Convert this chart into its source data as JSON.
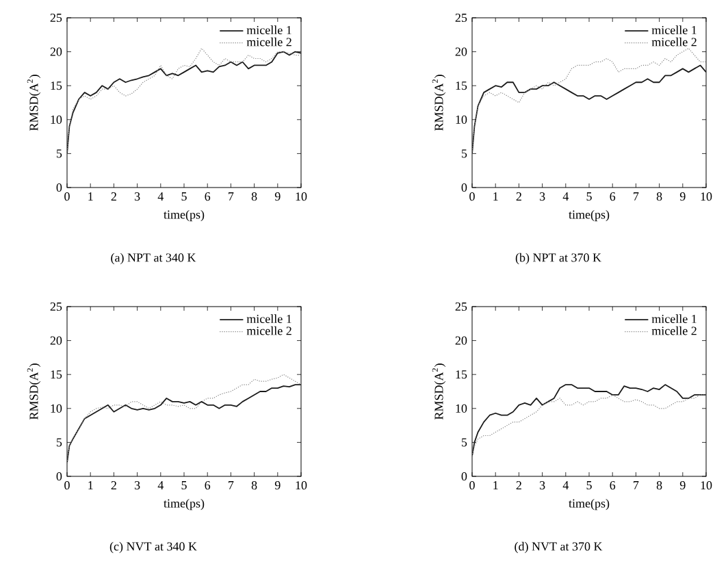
{
  "chart_data": [
    {
      "type": "line",
      "xlabel": "time(ps)",
      "ylabel": "RMSD(A$^{2}$)",
      "annotations": [
        "(a) NPT at 340 K"
      ],
      "xlim": [
        0,
        10
      ],
      "ylim": [
        0,
        25
      ],
      "xticks": [
        0,
        1,
        2,
        3,
        4,
        5,
        6,
        7,
        8,
        9,
        10
      ],
      "yticks": [
        0,
        5,
        10,
        15,
        20,
        25
      ],
      "legend": "top right",
      "x": [
        0,
        0.1,
        0.25,
        0.5,
        0.75,
        1,
        1.25,
        1.5,
        1.75,
        2,
        2.25,
        2.5,
        2.75,
        3,
        3.25,
        3.5,
        3.75,
        4,
        4.25,
        4.5,
        4.75,
        5,
        5.25,
        5.5,
        5.75,
        6,
        6.25,
        6.5,
        6.75,
        7,
        7.25,
        7.5,
        7.75,
        8,
        8.25,
        8.5,
        8.75,
        9,
        9.25,
        9.5,
        9.75,
        10
      ],
      "series": [
        {
          "name": "micelle 1",
          "color": "#1a1a1a",
          "line_style": "solid",
          "values": [
            5,
            9,
            11,
            13,
            14,
            13.5,
            14,
            15,
            14.5,
            15.5,
            16,
            15.5,
            15.8,
            16,
            16.3,
            16.5,
            17,
            17.5,
            16.5,
            16.8,
            16.5,
            17,
            17.5,
            18,
            17,
            17.2,
            17,
            17.8,
            18,
            18.5,
            18,
            18.5,
            17.5,
            18,
            18,
            18,
            18.5,
            19.8,
            20,
            19.5,
            20,
            19.8
          ]
        },
        {
          "name": "micelle 2",
          "color": "#808080",
          "line_style": "dotted",
          "values": [
            5,
            9,
            11.5,
            13,
            13.5,
            13,
            13.5,
            14.5,
            14.5,
            15,
            14,
            13.5,
            13.8,
            14.5,
            15.5,
            16,
            16.5,
            18,
            16.5,
            16,
            17.5,
            18,
            17.8,
            19,
            20.5,
            19.5,
            18.5,
            18,
            19,
            18.5,
            18.5,
            18.5,
            19.5,
            19,
            19,
            18.5,
            19,
            20,
            20,
            19.8,
            19.5,
            19.5
          ]
        }
      ]
    },
    {
      "type": "line",
      "xlabel": "time(ps)",
      "ylabel": "RMSD(A$^{2}$)",
      "annotations": [
        "(b) NPT at 370 K"
      ],
      "xlim": [
        0,
        10
      ],
      "ylim": [
        0,
        25
      ],
      "xticks": [
        0,
        1,
        2,
        3,
        4,
        5,
        6,
        7,
        8,
        9,
        10
      ],
      "yticks": [
        0,
        5,
        10,
        15,
        20,
        25
      ],
      "legend": "top right",
      "x": [
        0,
        0.1,
        0.25,
        0.5,
        0.75,
        1,
        1.25,
        1.5,
        1.75,
        2,
        2.25,
        2.5,
        2.75,
        3,
        3.25,
        3.5,
        3.75,
        4,
        4.25,
        4.5,
        4.75,
        5,
        5.25,
        5.5,
        5.75,
        6,
        6.25,
        6.5,
        6.75,
        7,
        7.25,
        7.5,
        7.75,
        8,
        8.25,
        8.5,
        8.75,
        9,
        9.25,
        9.5,
        9.75,
        10
      ],
      "series": [
        {
          "name": "micelle 1",
          "color": "#1a1a1a",
          "line_style": "solid",
          "values": [
            5,
            9,
            12,
            14,
            14.5,
            15,
            14.8,
            15.5,
            15.5,
            14,
            14,
            14.5,
            14.5,
            15,
            15,
            15.5,
            15,
            14.5,
            14,
            13.5,
            13.5,
            13,
            13.5,
            13.5,
            13,
            13.5,
            14,
            14.5,
            15,
            15.5,
            15.5,
            16,
            15.5,
            15.5,
            16.5,
            16.5,
            17,
            17.5,
            17,
            17.5,
            18,
            17
          ]
        },
        {
          "name": "micelle 2",
          "color": "#808080",
          "line_style": "dotted",
          "values": [
            5,
            9,
            12,
            13.5,
            14,
            13.5,
            14,
            13.5,
            13,
            12.5,
            14,
            14.5,
            15,
            14.5,
            15.5,
            15,
            15.5,
            16,
            17.5,
            18,
            18,
            18,
            18.5,
            18.5,
            19,
            18.5,
            17,
            17.5,
            17.5,
            17.5,
            18,
            18,
            18.5,
            18,
            19,
            18.5,
            19.5,
            20,
            20.5,
            19.5,
            18.5,
            18.5
          ]
        }
      ]
    },
    {
      "type": "line",
      "xlabel": "time(ps)",
      "ylabel": "RMSD(A$^{2}$)",
      "annotations": [
        "(c) NVT at 340 K"
      ],
      "xlim": [
        0,
        10
      ],
      "ylim": [
        0,
        25
      ],
      "xticks": [
        0,
        1,
        2,
        3,
        4,
        5,
        6,
        7,
        8,
        9,
        10
      ],
      "yticks": [
        0,
        5,
        10,
        15,
        20,
        25
      ],
      "legend": "top right",
      "x": [
        0,
        0.1,
        0.25,
        0.5,
        0.75,
        1,
        1.25,
        1.5,
        1.75,
        2,
        2.25,
        2.5,
        2.75,
        3,
        3.25,
        3.5,
        3.75,
        4,
        4.25,
        4.5,
        4.75,
        5,
        5.25,
        5.5,
        5.75,
        6,
        6.25,
        6.5,
        6.75,
        7,
        7.25,
        7.5,
        7.75,
        8,
        8.25,
        8.5,
        8.75,
        9,
        9.25,
        9.5,
        9.75,
        10
      ],
      "series": [
        {
          "name": "micelle 1",
          "color": "#1a1a1a",
          "line_style": "solid",
          "values": [
            2,
            4.5,
            5.5,
            7,
            8.5,
            9,
            9.5,
            10,
            10.5,
            9.5,
            10,
            10.5,
            10,
            9.8,
            10,
            9.8,
            10,
            10.5,
            11.5,
            11,
            11,
            10.8,
            11,
            10.5,
            11,
            10.5,
            10.5,
            10,
            10.5,
            10.5,
            10.3,
            11,
            11.5,
            12,
            12.5,
            12.5,
            13,
            13,
            13.3,
            13.2,
            13.5,
            13.5
          ]
        },
        {
          "name": "micelle 2",
          "color": "#808080",
          "line_style": "dotted",
          "values": [
            2,
            4.5,
            5.5,
            7,
            8.5,
            9.5,
            10,
            10.2,
            10,
            10.5,
            10.5,
            10.3,
            11,
            11,
            10.5,
            10,
            10.5,
            11,
            10.5,
            10.5,
            10.3,
            10.5,
            10,
            10,
            11,
            11.5,
            11.5,
            12,
            12.3,
            12.5,
            13,
            13.5,
            13.5,
            14.3,
            14,
            14,
            14.3,
            14.5,
            15,
            14.5,
            14,
            13.5
          ]
        }
      ]
    },
    {
      "type": "line",
      "xlabel": "time(ps)",
      "ylabel": "RMSD(A$^{2}$)",
      "annotations": [
        "(d) NVT at 370 K"
      ],
      "xlim": [
        0,
        10
      ],
      "ylim": [
        0,
        25
      ],
      "xticks": [
        0,
        1,
        2,
        3,
        4,
        5,
        6,
        7,
        8,
        9,
        10
      ],
      "yticks": [
        0,
        5,
        10,
        15,
        20,
        25
      ],
      "legend": "top right",
      "x": [
        0,
        0.1,
        0.25,
        0.5,
        0.75,
        1,
        1.25,
        1.5,
        1.75,
        2,
        2.25,
        2.5,
        2.75,
        3,
        3.25,
        3.5,
        3.75,
        4,
        4.25,
        4.5,
        4.75,
        5,
        5.25,
        5.5,
        5.75,
        6,
        6.25,
        6.5,
        6.75,
        7,
        7.25,
        7.5,
        7.75,
        8,
        8.25,
        8.5,
        8.75,
        9,
        9.25,
        9.5,
        9.75,
        10
      ],
      "series": [
        {
          "name": "micelle 1",
          "color": "#1a1a1a",
          "line_style": "solid",
          "values": [
            3,
            5,
            6.5,
            8,
            9,
            9.3,
            9,
            9,
            9.5,
            10.5,
            10.8,
            10.5,
            11.5,
            10.5,
            11,
            11.5,
            13,
            13.5,
            13.5,
            13,
            13,
            13,
            12.5,
            12.5,
            12.5,
            12,
            12,
            13.3,
            13,
            13,
            12.8,
            12.5,
            13,
            12.8,
            13.5,
            13,
            12.5,
            11.5,
            11.5,
            12,
            12,
            12
          ]
        },
        {
          "name": "micelle 2",
          "color": "#808080",
          "line_style": "dotted",
          "values": [
            3,
            4.5,
            5.5,
            6,
            6,
            6.5,
            7,
            7.5,
            8,
            8,
            8.5,
            9,
            9.5,
            10.5,
            11,
            11,
            11.5,
            10.5,
            10.5,
            11,
            10.5,
            11,
            11,
            11.5,
            11.5,
            12,
            11.5,
            11,
            11,
            11.3,
            11,
            10.5,
            10.5,
            10,
            10,
            10.5,
            11,
            11,
            11.5,
            11.5,
            12,
            12
          ]
        }
      ]
    }
  ]
}
